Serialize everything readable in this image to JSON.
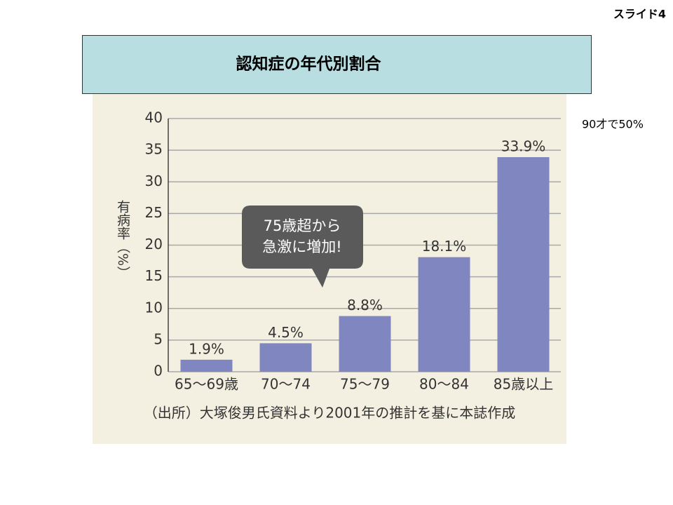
{
  "slide_label": "スライド4",
  "title": "認知症の年代別割合",
  "note": "90才で50%",
  "chart_data": {
    "type": "bar",
    "categories": [
      "65〜69歳",
      "70〜74",
      "75〜79",
      "80〜84",
      "85歳以上"
    ],
    "values": [
      1.9,
      4.5,
      8.8,
      18.1,
      33.9
    ],
    "value_labels": [
      "1.9%",
      "4.5%",
      "8.8%",
      "18.1%",
      "33.9%"
    ],
    "color": "#7f86c0",
    "y_label": "有病率（%）",
    "ylim": [
      0,
      40
    ],
    "yticks": [
      0,
      5,
      10,
      15,
      20,
      25,
      30,
      35,
      40
    ],
    "grid": true,
    "callout": [
      "75歳超から",
      "急激に増加!"
    ],
    "source": "（出所）大塚俊男氏資料より2001年の推計を基に本誌作成"
  }
}
